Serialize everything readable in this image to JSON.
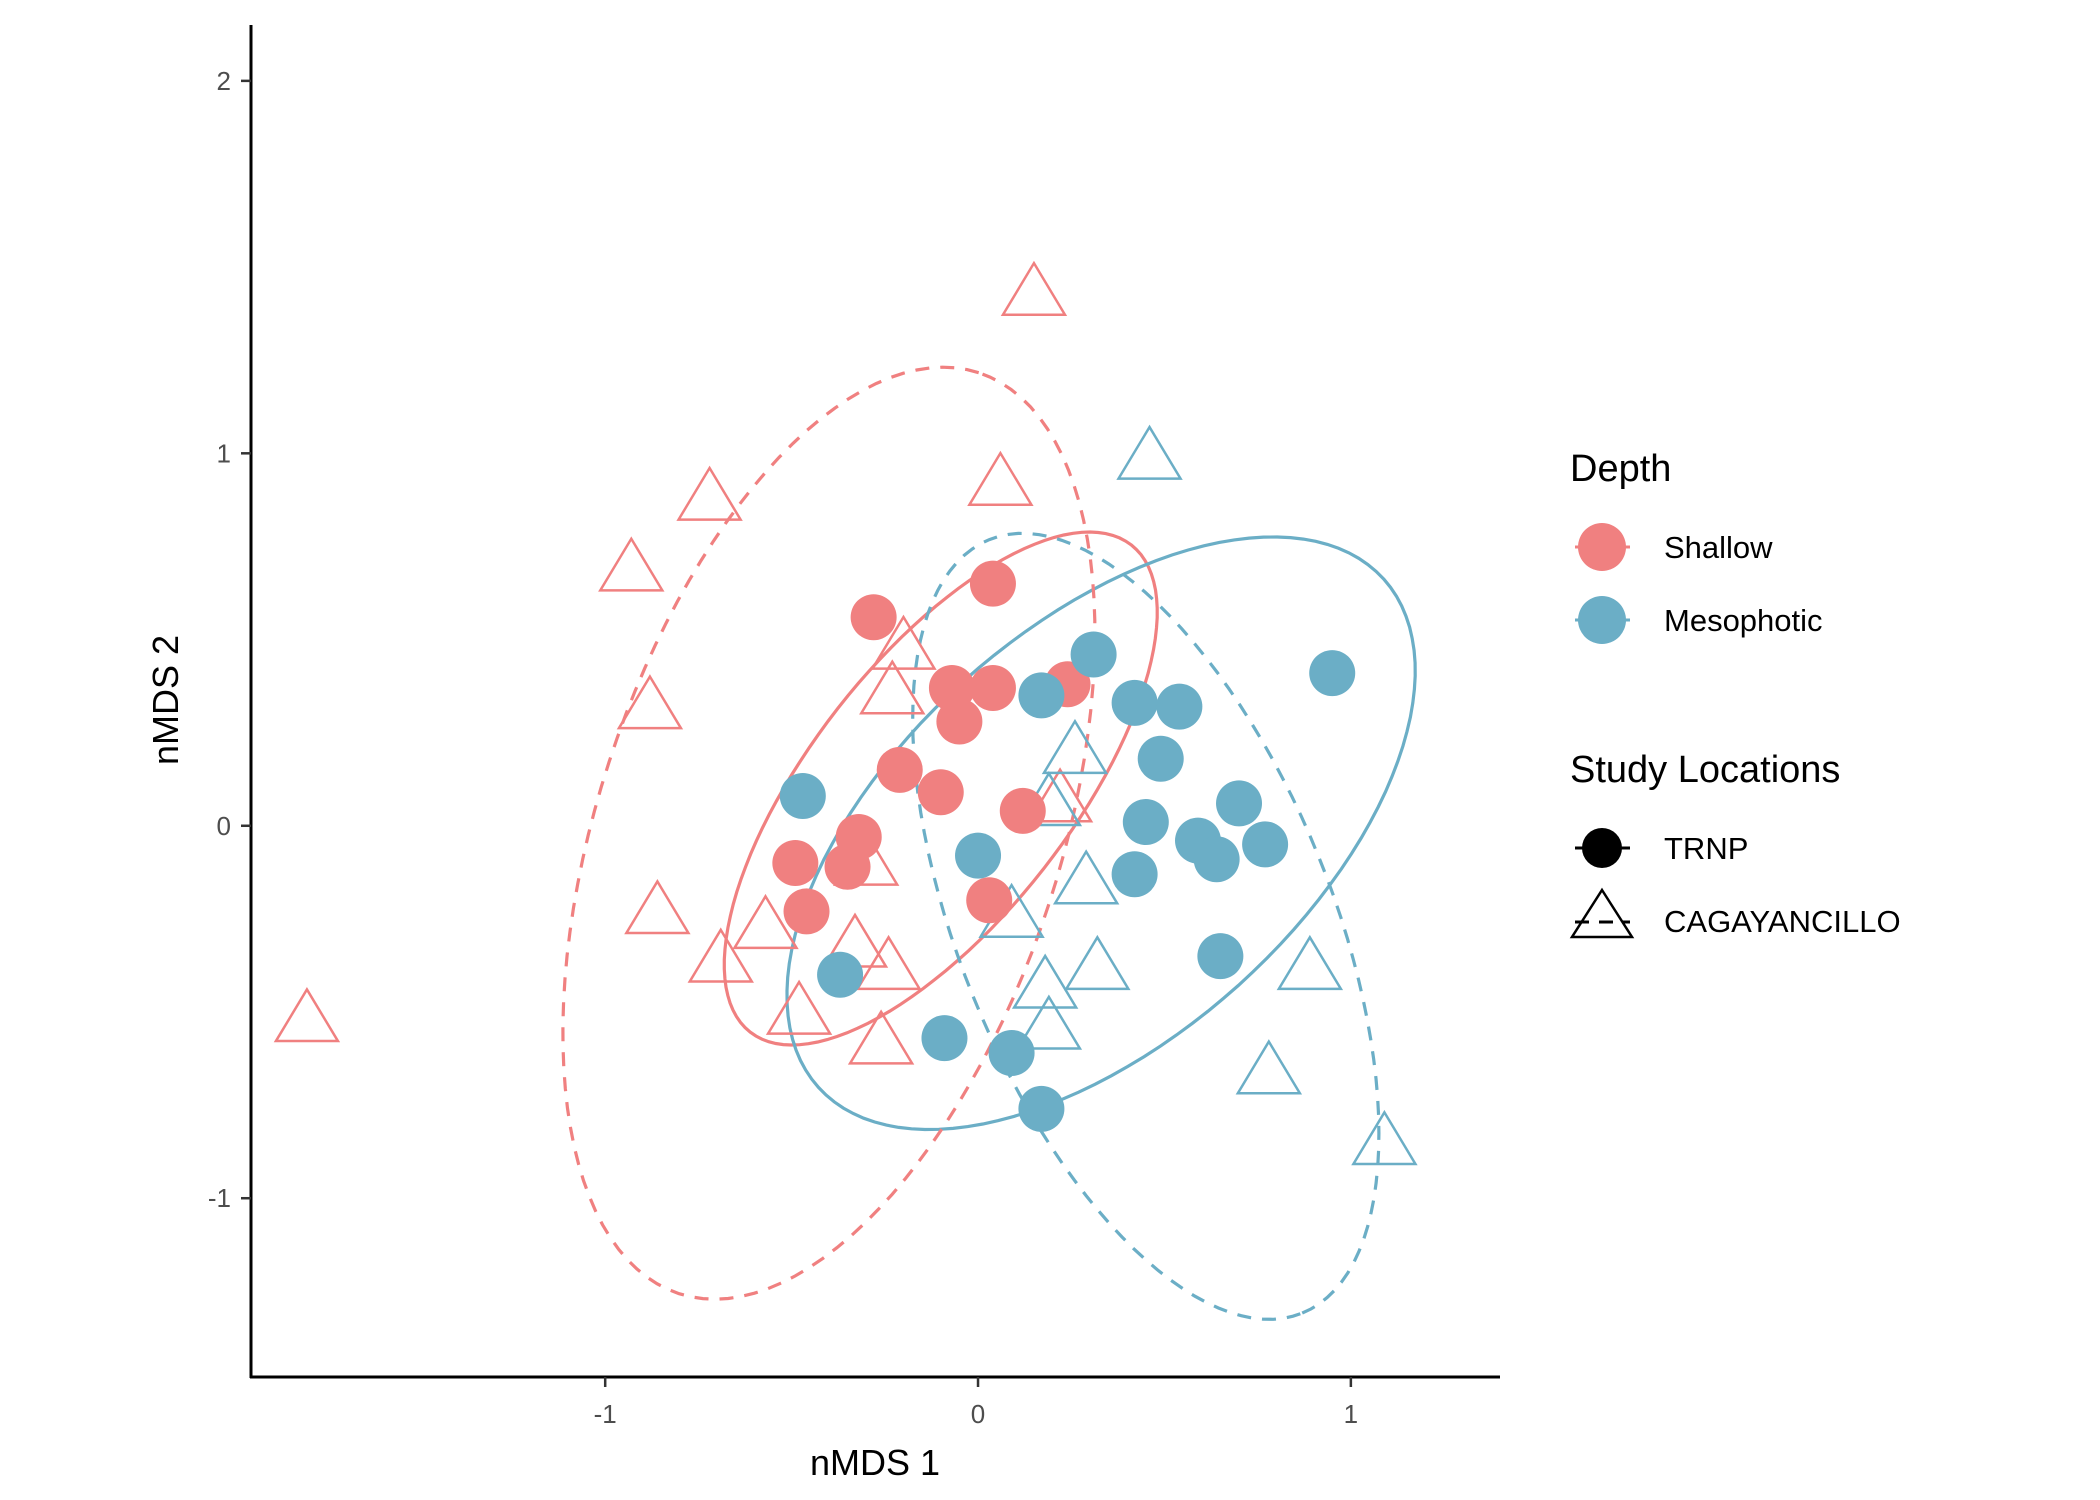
{
  "chart_data": {
    "type": "scatter",
    "xlabel": "nMDS 1",
    "ylabel": "nMDS 2",
    "xlim": [
      -1.95,
      1.4
    ],
    "ylim": [
      -1.48,
      2.15
    ],
    "x_ticks": [
      -1,
      0,
      1
    ],
    "y_ticks": [
      -1,
      0,
      1,
      2
    ],
    "x_tick_labels": [
      "-1",
      "0",
      "1"
    ],
    "y_tick_labels": [
      "-1",
      "0",
      "1",
      "2"
    ],
    "grid": false,
    "legend_placement": "right",
    "colors": {
      "Shallow": "#F08080",
      "Mesophotic": "#6BAEC6"
    },
    "legend": {
      "color_title": "Depth",
      "color_entries": [
        "Shallow",
        "Mesophotic"
      ],
      "shape_title": "Study Locations",
      "shape_entries": [
        "TRNP",
        "CAGAYANCILLO"
      ]
    },
    "series": [
      {
        "depth": "Shallow",
        "location": "TRNP",
        "shape": "circle",
        "ellipse_line": "solid",
        "points": [
          [
            -0.28,
            0.56
          ],
          [
            0.04,
            0.65
          ],
          [
            -0.07,
            0.37
          ],
          [
            0.04,
            0.37
          ],
          [
            0.24,
            0.38
          ],
          [
            -0.05,
            0.28
          ],
          [
            -0.21,
            0.15
          ],
          [
            -0.1,
            0.09
          ],
          [
            0.12,
            0.04
          ],
          [
            -0.32,
            -0.03
          ],
          [
            -0.49,
            -0.1
          ],
          [
            -0.35,
            -0.11
          ],
          [
            0.03,
            -0.2
          ],
          [
            -0.46,
            -0.23
          ]
        ]
      },
      {
        "depth": "Mesophotic",
        "location": "TRNP",
        "shape": "circle",
        "ellipse_line": "solid",
        "points": [
          [
            0.31,
            0.46
          ],
          [
            0.95,
            0.41
          ],
          [
            0.17,
            0.35
          ],
          [
            0.42,
            0.33
          ],
          [
            0.54,
            0.32
          ],
          [
            0.49,
            0.18
          ],
          [
            -0.47,
            0.08
          ],
          [
            0.7,
            0.06
          ],
          [
            0.45,
            0.01
          ],
          [
            0.59,
            -0.04
          ],
          [
            0.64,
            -0.09
          ],
          [
            0.77,
            -0.05
          ],
          [
            0.0,
            -0.08
          ],
          [
            0.42,
            -0.13
          ],
          [
            0.65,
            -0.35
          ],
          [
            -0.37,
            -0.4
          ],
          [
            -0.09,
            -0.57
          ],
          [
            0.09,
            -0.61
          ],
          [
            0.17,
            -0.76
          ]
        ]
      },
      {
        "depth": "Shallow",
        "location": "CAGAYANCILLO",
        "shape": "triangle",
        "ellipse_line": "dashed",
        "points": [
          [
            -1.8,
            -0.52
          ],
          [
            0.15,
            1.43
          ],
          [
            0.06,
            0.92
          ],
          [
            -0.72,
            0.88
          ],
          [
            -0.93,
            0.69
          ],
          [
            -0.88,
            0.32
          ],
          [
            -0.2,
            0.48
          ],
          [
            -0.23,
            0.36
          ],
          [
            0.22,
            0.07
          ],
          [
            -0.3,
            -0.1
          ],
          [
            -0.86,
            -0.23
          ],
          [
            -0.57,
            -0.27
          ],
          [
            -0.69,
            -0.36
          ],
          [
            -0.33,
            -0.32
          ],
          [
            -0.24,
            -0.38
          ],
          [
            -0.48,
            -0.5
          ],
          [
            -0.26,
            -0.58
          ]
        ]
      },
      {
        "depth": "Mesophotic",
        "location": "CAGAYANCILLO",
        "shape": "triangle",
        "ellipse_line": "dashed",
        "points": [
          [
            0.46,
            0.99
          ],
          [
            0.26,
            0.2
          ],
          [
            0.19,
            0.06
          ],
          [
            0.29,
            -0.15
          ],
          [
            0.09,
            -0.24
          ],
          [
            0.32,
            -0.38
          ],
          [
            0.18,
            -0.43
          ],
          [
            0.19,
            -0.54
          ],
          [
            0.89,
            -0.38
          ],
          [
            0.78,
            -0.66
          ],
          [
            1.09,
            -0.85
          ]
        ]
      }
    ],
    "ellipses": [
      {
        "depth": "Shallow",
        "location": "TRNP",
        "line": "solid",
        "center": [
          -0.1,
          0.1
        ],
        "semi_axes": [
          0.83,
          0.35
        ],
        "angle_deg": 52
      },
      {
        "depth": "Mesophotic",
        "location": "TRNP",
        "line": "solid",
        "center": [
          0.33,
          -0.02
        ],
        "semi_axes": [
          1.02,
          0.55
        ],
        "angle_deg": 42
      },
      {
        "depth": "Shallow",
        "location": "CAGAYANCILLO",
        "line": "dashed",
        "center": [
          -0.4,
          -0.02
        ],
        "semi_axes": [
          1.3,
          0.62
        ],
        "angle_deg": 72
      },
      {
        "depth": "Mesophotic",
        "location": "CAGAYANCILLO",
        "line": "dashed",
        "center": [
          0.45,
          -0.27
        ],
        "semi_axes": [
          1.12,
          0.5
        ],
        "angle_deg": -68
      }
    ]
  }
}
